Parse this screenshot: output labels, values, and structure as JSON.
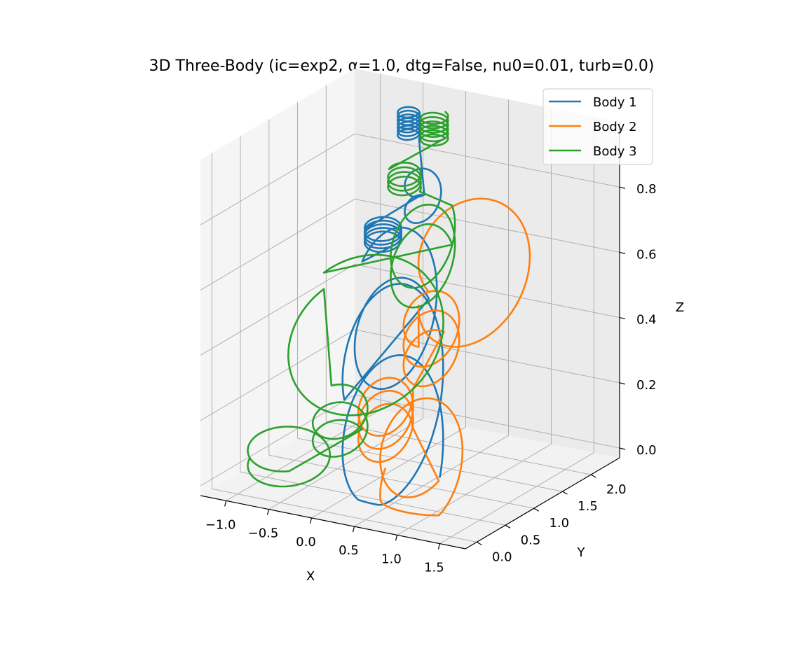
{
  "chart_data": {
    "type": "line",
    "projection": "3d",
    "title": "3D Three-Body (ic=exp2, α=1.0, dtg=False, nu0=0.01, turb=0.0)",
    "xlabel": "X",
    "ylabel": "Y",
    "zlabel": "Z",
    "xlim": [
      -1.3,
      1.8
    ],
    "ylim": [
      -0.2,
      2.5
    ],
    "zlim": [
      -0.03,
      1.0
    ],
    "x_ticks": [
      "−1.0",
      "−0.5",
      "0.0",
      "0.5",
      "1.0",
      "1.5"
    ],
    "x_tick_values": [
      -1.0,
      -0.5,
      0.0,
      0.5,
      1.0,
      1.5
    ],
    "y_ticks": [
      "0.0",
      "0.5",
      "1.0",
      "1.5",
      "2.0"
    ],
    "y_tick_values": [
      0.0,
      0.5,
      1.0,
      1.5,
      2.0
    ],
    "z_ticks": [
      "0.0",
      "0.2",
      "0.4",
      "0.6",
      "0.8"
    ],
    "z_tick_values": [
      0.0,
      0.2,
      0.4,
      0.6,
      0.8
    ],
    "grid": true,
    "legend_position": "top-right",
    "series": [
      {
        "name": "Body 1",
        "color": "#1f77b4",
        "segments": [
          {
            "center": [
              0.35,
              0.7,
              0.05
            ],
            "radius": [
              0.55,
              0.15
            ],
            "z_amp": 0.25,
            "turns": 1.6,
            "phase": 0.0,
            "rise": 0.35
          },
          {
            "center": [
              0.25,
              0.9,
              0.38
            ],
            "radius": [
              0.45,
              0.12
            ],
            "z_amp": 0.18,
            "turns": 1.3,
            "phase": 1.0,
            "rise": 0.2
          },
          {
            "center": [
              -0.3,
              1.5,
              0.62
            ],
            "radius": [
              0.2,
              0.06
            ],
            "z_amp": 0.02,
            "turns": 4.5,
            "phase": 0.5,
            "rise": 0.05
          },
          {
            "center": [
              0.1,
              1.6,
              0.72
            ],
            "radius": [
              0.2,
              0.05
            ],
            "z_amp": 0.05,
            "turns": 1.5,
            "phase": 2.0,
            "rise": 0.12
          },
          {
            "center": [
              -0.4,
              2.1,
              0.88
            ],
            "radius": [
              0.12,
              0.04
            ],
            "z_amp": 0.01,
            "turns": 7.0,
            "phase": 0.0,
            "rise": 0.08
          }
        ]
      },
      {
        "name": "Body 2",
        "color": "#ff7f0e",
        "segments": [
          {
            "center": [
              0.75,
              0.6,
              0.03
            ],
            "radius": [
              0.45,
              0.12
            ],
            "z_amp": 0.15,
            "turns": 1.4,
            "phase": 3.0,
            "rise": 0.15
          },
          {
            "center": [
              0.2,
              0.8,
              0.12
            ],
            "radius": [
              0.3,
              0.08
            ],
            "z_amp": 0.08,
            "turns": 3.0,
            "phase": 0.5,
            "rise": 0.12
          },
          {
            "center": [
              0.6,
              1.0,
              0.35
            ],
            "radius": [
              0.3,
              0.1
            ],
            "z_amp": 0.08,
            "turns": 2.5,
            "phase": 1.5,
            "rise": 0.15
          },
          {
            "center": [
              0.9,
              1.3,
              0.55
            ],
            "radius": [
              0.6,
              0.2
            ],
            "z_amp": 0.15,
            "turns": 1.1,
            "phase": 3.5,
            "rise": 0.15
          }
        ]
      },
      {
        "name": "Body 3",
        "color": "#2ca02c",
        "segments": [
          {
            "center": [
              -0.6,
              0.3,
              0.05
            ],
            "radius": [
              0.45,
              0.12
            ],
            "z_amp": 0.05,
            "turns": 1.3,
            "phase": 3.2,
            "rise": 0.06
          },
          {
            "center": [
              -0.2,
              0.6,
              0.1
            ],
            "radius": [
              0.3,
              0.08
            ],
            "z_amp": 0.05,
            "turns": 2.2,
            "phase": 1.0,
            "rise": 0.12
          },
          {
            "center": [
              -0.1,
              0.9,
              0.38
            ],
            "radius": [
              0.85,
              0.22
            ],
            "z_amp": 0.18,
            "turns": 1.0,
            "phase": 2.5,
            "rise": 0.05
          },
          {
            "center": [
              0.3,
              1.3,
              0.58
            ],
            "radius": [
              0.35,
              0.1
            ],
            "z_amp": 0.12,
            "turns": 2.0,
            "phase": 0.8,
            "rise": 0.12
          },
          {
            "center": [
              -0.25,
              1.8,
              0.76
            ],
            "radius": [
              0.18,
              0.05
            ],
            "z_amp": 0.02,
            "turns": 3.5,
            "phase": 0.0,
            "rise": 0.05
          },
          {
            "center": [
              -0.1,
              2.1,
              0.88
            ],
            "radius": [
              0.15,
              0.04
            ],
            "z_amp": 0.01,
            "turns": 6.0,
            "phase": 1.0,
            "rise": 0.08
          }
        ]
      }
    ]
  }
}
